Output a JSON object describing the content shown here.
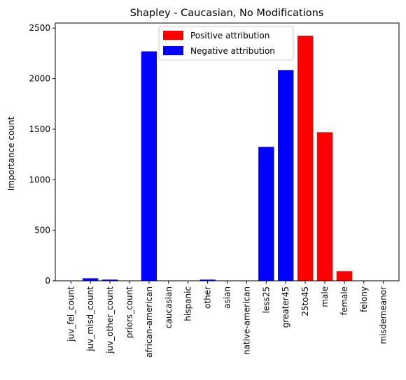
{
  "chart_data": {
    "type": "bar",
    "title": "Shapley - Caucasian, No Modifications",
    "xlabel": "",
    "ylabel": "Importance count",
    "ylim": [
      0,
      2550
    ],
    "yticks": [
      0,
      500,
      1000,
      1500,
      2000,
      2500
    ],
    "grid": false,
    "legend_position": "top-center",
    "legend": [
      {
        "label": "Positive attribution",
        "color": "#ff0000"
      },
      {
        "label": "Negative attribution",
        "color": "#0000ff"
      }
    ],
    "categories": [
      "juv_fel_count",
      "juv_misd_count",
      "juv_other_count",
      "priors_count",
      "african-american",
      "caucasian",
      "hispanic",
      "other",
      "asian",
      "native-american",
      "less25",
      "greater45",
      "25to45",
      "male",
      "female",
      "felony",
      "misdemeanor"
    ],
    "values": [
      0,
      25,
      12,
      0,
      2270,
      0,
      0,
      12,
      0,
      0,
      1325,
      2085,
      2425,
      1470,
      95,
      0,
      0
    ],
    "colors": [
      "#0000ff",
      "#0000ff",
      "#0000ff",
      "#0000ff",
      "#0000ff",
      "#0000ff",
      "#0000ff",
      "#0000ff",
      "#0000ff",
      "#0000ff",
      "#0000ff",
      "#0000ff",
      "#ff0000",
      "#ff0000",
      "#ff0000",
      "#ff0000",
      "#ff0000"
    ]
  }
}
